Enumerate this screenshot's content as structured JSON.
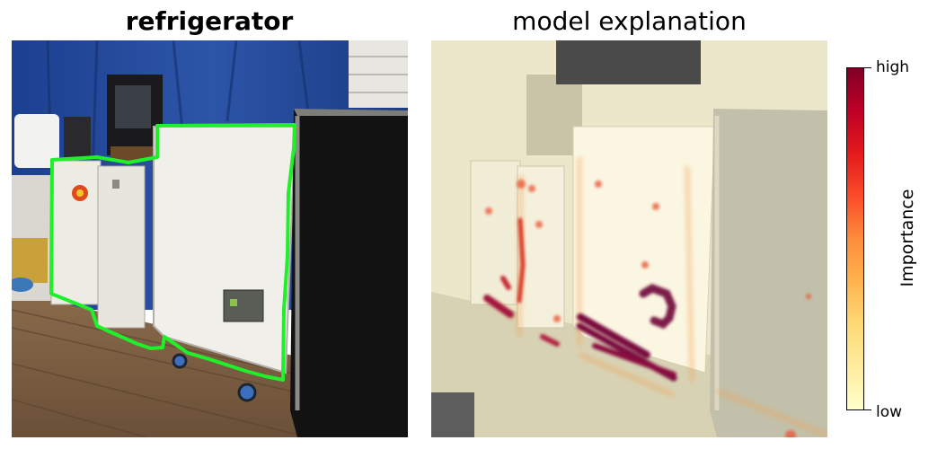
{
  "left_panel": {
    "title": "refrigerator",
    "image_description": "photo of white refrigerator chests on a wooden floor in a tent, with a green segmentation outline around the refrigerator"
  },
  "right_panel": {
    "title": "model explanation",
    "image_description": "same photo desaturated with a yellow-to-red importance heatmap overlay"
  },
  "colorbar": {
    "label": "Importance",
    "high_label": "high",
    "low_label": "low",
    "colormap": [
      "#ffffcc",
      "#ffeda0",
      "#fed976",
      "#feb24c",
      "#fd8d3c",
      "#fc4e2a",
      "#e31a1c",
      "#bd0026",
      "#800026"
    ],
    "outline_color": "#00ff00"
  }
}
